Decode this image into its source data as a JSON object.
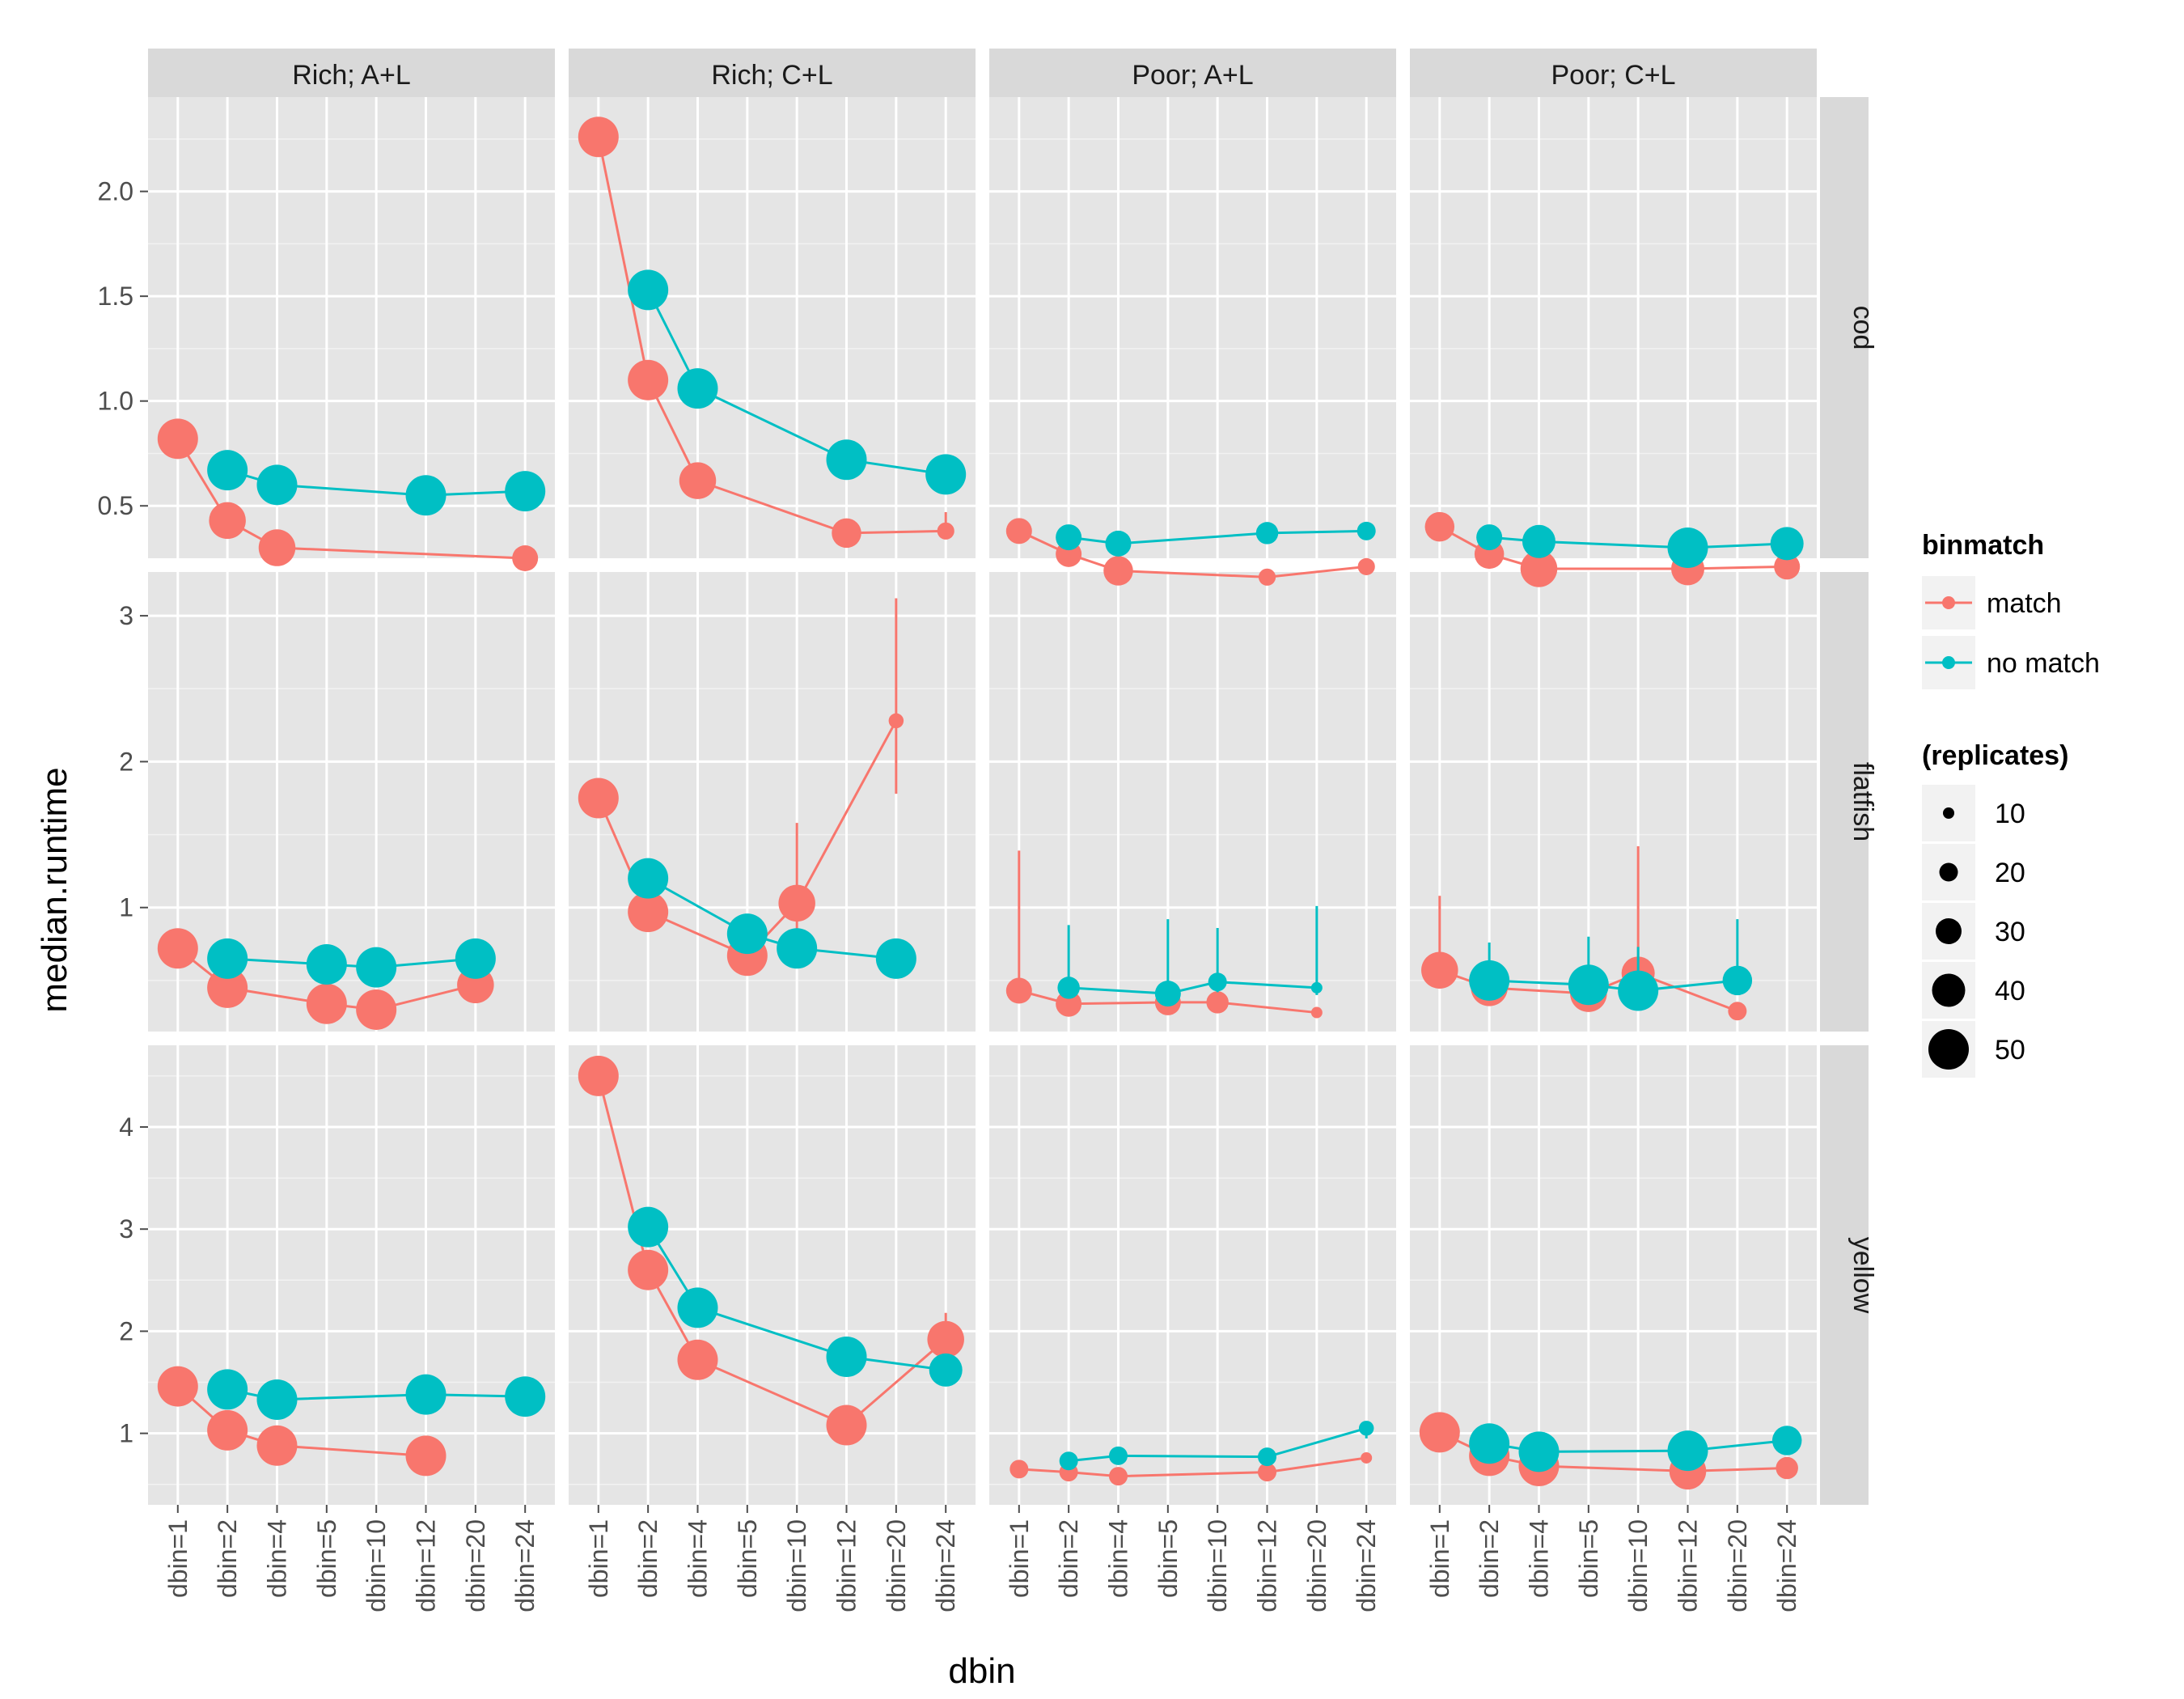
{
  "chart_data": {
    "type": "line",
    "facet_columns": [
      "Rich; A+L",
      "Rich; C+L",
      "Poor; A+L",
      "Poor; C+L"
    ],
    "facet_rows": [
      {
        "label": "cod",
        "ylim": [
          0.25,
          2.45
        ],
        "yticks": [
          0.5,
          1.0,
          1.5,
          2.0
        ],
        "tick_labels": [
          "0.5",
          "1.0",
          "1.5",
          "2.0"
        ]
      },
      {
        "label": "flatfish",
        "ylim": [
          0.15,
          3.3
        ],
        "yticks": [
          1,
          2,
          3
        ],
        "tick_labels": [
          "1",
          "2",
          "3"
        ]
      },
      {
        "label": "yellow",
        "ylim": [
          0.3,
          4.8
        ],
        "yticks": [
          1,
          2,
          3,
          4
        ],
        "tick_labels": [
          "1",
          "2",
          "3",
          "4"
        ]
      }
    ],
    "categories": [
      "dbin=1",
      "dbin=2",
      "dbin=4",
      "dbin=5",
      "dbin=10",
      "dbin=12",
      "dbin=20",
      "dbin=24"
    ],
    "xlabel": "dbin",
    "ylabel": "median.runtime",
    "legend": {
      "color_title": "binmatch",
      "color_items": [
        {
          "label": "match",
          "color": "#F8766D"
        },
        {
          "label": "no match",
          "color": "#00BFC4"
        }
      ],
      "size_title": "(replicates)",
      "size_items": [
        10,
        20,
        30,
        40,
        50
      ],
      "size_labels": [
        "10",
        "20",
        "30",
        "40",
        "50"
      ],
      "placement": "right"
    },
    "colors": {
      "match": "#F8766D",
      "no match": "#00BFC4"
    },
    "panels": [
      {
        "row": 0,
        "col": 0,
        "series": [
          {
            "key": "match",
            "points": [
              {
                "x": "dbin=1",
                "y": 0.82,
                "n": 50
              },
              {
                "x": "dbin=2",
                "y": 0.43,
                "n": 45
              },
              {
                "x": "dbin=4",
                "y": 0.3,
                "n": 45
              },
              {
                "x": "dbin=24",
                "y": 0.25,
                "n": 30
              }
            ]
          },
          {
            "key": "no match",
            "points": [
              {
                "x": "dbin=2",
                "y": 0.67,
                "n": 50
              },
              {
                "x": "dbin=4",
                "y": 0.6,
                "n": 50
              },
              {
                "x": "dbin=12",
                "y": 0.55,
                "n": 50
              },
              {
                "x": "dbin=24",
                "y": 0.57,
                "n": 50
              }
            ]
          }
        ]
      },
      {
        "row": 0,
        "col": 1,
        "series": [
          {
            "key": "match",
            "points": [
              {
                "x": "dbin=1",
                "y": 2.26,
                "n": 50
              },
              {
                "x": "dbin=2",
                "y": 1.1,
                "n": 50
              },
              {
                "x": "dbin=4",
                "y": 0.62,
                "n": 45
              },
              {
                "x": "dbin=12",
                "y": 0.37,
                "n": 35
              },
              {
                "x": "dbin=24",
                "y": 0.38,
                "n": 18,
                "ymin": 0.34,
                "ymax": 0.47
              }
            ]
          },
          {
            "key": "no match",
            "points": [
              {
                "x": "dbin=2",
                "y": 1.53,
                "n": 50
              },
              {
                "x": "dbin=4",
                "y": 1.06,
                "n": 50
              },
              {
                "x": "dbin=12",
                "y": 0.72,
                "n": 50
              },
              {
                "x": "dbin=24",
                "y": 0.65,
                "n": 50
              }
            ]
          }
        ]
      },
      {
        "row": 0,
        "col": 2,
        "series": [
          {
            "key": "match",
            "points": [
              {
                "x": "dbin=1",
                "y": 0.38,
                "n": 30
              },
              {
                "x": "dbin=2",
                "y": 0.27,
                "n": 30
              },
              {
                "x": "dbin=4",
                "y": 0.19,
                "n": 35
              },
              {
                "x": "dbin=12",
                "y": 0.16,
                "n": 18
              },
              {
                "x": "dbin=24",
                "y": 0.21,
                "n": 18
              }
            ]
          },
          {
            "key": "no match",
            "points": [
              {
                "x": "dbin=2",
                "y": 0.35,
                "n": 30
              },
              {
                "x": "dbin=4",
                "y": 0.32,
                "n": 30
              },
              {
                "x": "dbin=12",
                "y": 0.37,
                "n": 25
              },
              {
                "x": "dbin=24",
                "y": 0.38,
                "n": 20
              }
            ]
          }
        ]
      },
      {
        "row": 0,
        "col": 3,
        "series": [
          {
            "key": "match",
            "points": [
              {
                "x": "dbin=1",
                "y": 0.4,
                "n": 35
              },
              {
                "x": "dbin=2",
                "y": 0.27,
                "n": 35
              },
              {
                "x": "dbin=4",
                "y": 0.2,
                "n": 45
              },
              {
                "x": "dbin=12",
                "y": 0.2,
                "n": 40
              },
              {
                "x": "dbin=24",
                "y": 0.21,
                "n": 30
              }
            ]
          },
          {
            "key": "no match",
            "points": [
              {
                "x": "dbin=2",
                "y": 0.35,
                "n": 30
              },
              {
                "x": "dbin=4",
                "y": 0.33,
                "n": 40
              },
              {
                "x": "dbin=12",
                "y": 0.3,
                "n": 50
              },
              {
                "x": "dbin=24",
                "y": 0.32,
                "n": 40
              }
            ]
          }
        ]
      },
      {
        "row": 1,
        "col": 0,
        "series": [
          {
            "key": "match",
            "points": [
              {
                "x": "dbin=1",
                "y": 0.72,
                "n": 50
              },
              {
                "x": "dbin=2",
                "y": 0.45,
                "n": 50
              },
              {
                "x": "dbin=5",
                "y": 0.34,
                "n": 50
              },
              {
                "x": "dbin=10",
                "y": 0.3,
                "n": 50
              },
              {
                "x": "dbin=20",
                "y": 0.47,
                "n": 45
              }
            ]
          },
          {
            "key": "no match",
            "points": [
              {
                "x": "dbin=2",
                "y": 0.65,
                "n": 50
              },
              {
                "x": "dbin=5",
                "y": 0.61,
                "n": 50
              },
              {
                "x": "dbin=10",
                "y": 0.59,
                "n": 50
              },
              {
                "x": "dbin=20",
                "y": 0.65,
                "n": 50
              }
            ]
          }
        ]
      },
      {
        "row": 1,
        "col": 1,
        "series": [
          {
            "key": "match",
            "points": [
              {
                "x": "dbin=1",
                "y": 1.75,
                "n": 50
              },
              {
                "x": "dbin=2",
                "y": 0.97,
                "n": 50
              },
              {
                "x": "dbin=5",
                "y": 0.67,
                "n": 50
              },
              {
                "x": "dbin=10",
                "y": 1.03,
                "n": 45,
                "ymin": 0.72,
                "ymax": 1.58
              },
              {
                "x": "dbin=20",
                "y": 2.28,
                "n": 15,
                "ymin": 1.78,
                "ymax": 3.12
              }
            ]
          },
          {
            "key": "no match",
            "points": [
              {
                "x": "dbin=2",
                "y": 1.2,
                "n": 50
              },
              {
                "x": "dbin=5",
                "y": 0.82,
                "n": 50
              },
              {
                "x": "dbin=10",
                "y": 0.72,
                "n": 50
              },
              {
                "x": "dbin=20",
                "y": 0.65,
                "n": 50
              }
            ]
          }
        ]
      },
      {
        "row": 1,
        "col": 2,
        "series": [
          {
            "key": "match",
            "points": [
              {
                "x": "dbin=1",
                "y": 0.43,
                "n": 30,
                "ymin": 0.4,
                "ymax": 1.39
              },
              {
                "x": "dbin=2",
                "y": 0.34,
                "n": 30
              },
              {
                "x": "dbin=5",
                "y": 0.35,
                "n": 30
              },
              {
                "x": "dbin=10",
                "y": 0.35,
                "n": 25
              },
              {
                "x": "dbin=20",
                "y": 0.28,
                "n": 10
              }
            ]
          },
          {
            "key": "no match",
            "points": [
              {
                "x": "dbin=2",
                "y": 0.45,
                "n": 25,
                "ymin": 0.4,
                "ymax": 0.88
              },
              {
                "x": "dbin=5",
                "y": 0.41,
                "n": 30,
                "ymin": 0.38,
                "ymax": 0.92
              },
              {
                "x": "dbin=10",
                "y": 0.49,
                "n": 20,
                "ymin": 0.42,
                "ymax": 0.86
              },
              {
                "x": "dbin=20",
                "y": 0.45,
                "n": 10,
                "ymin": 0.4,
                "ymax": 1.01
              }
            ]
          }
        ]
      },
      {
        "row": 1,
        "col": 3,
        "series": [
          {
            "key": "match",
            "points": [
              {
                "x": "dbin=1",
                "y": 0.57,
                "n": 45,
                "ymin": 0.5,
                "ymax": 1.08
              },
              {
                "x": "dbin=2",
                "y": 0.45,
                "n": 45
              },
              {
                "x": "dbin=5",
                "y": 0.41,
                "n": 45
              },
              {
                "x": "dbin=10",
                "y": 0.55,
                "n": 40,
                "ymin": 0.48,
                "ymax": 1.42
              },
              {
                "x": "dbin=20",
                "y": 0.29,
                "n": 20
              }
            ]
          },
          {
            "key": "no match",
            "points": [
              {
                "x": "dbin=2",
                "y": 0.5,
                "n": 50,
                "ymin": 0.4,
                "ymax": 0.76
              },
              {
                "x": "dbin=5",
                "y": 0.47,
                "n": 50,
                "ymin": 0.42,
                "ymax": 0.8
              },
              {
                "x": "dbin=10",
                "y": 0.43,
                "n": 50,
                "ymin": 0.4,
                "ymax": 0.73
              },
              {
                "x": "dbin=20",
                "y": 0.5,
                "n": 35,
                "ymin": 0.45,
                "ymax": 0.92
              }
            ]
          }
        ]
      },
      {
        "row": 2,
        "col": 0,
        "series": [
          {
            "key": "match",
            "points": [
              {
                "x": "dbin=1",
                "y": 1.46,
                "n": 50
              },
              {
                "x": "dbin=2",
                "y": 1.03,
                "n": 50
              },
              {
                "x": "dbin=4",
                "y": 0.88,
                "n": 50
              },
              {
                "x": "dbin=12",
                "y": 0.78,
                "n": 50
              }
            ]
          },
          {
            "key": "no match",
            "points": [
              {
                "x": "dbin=2",
                "y": 1.43,
                "n": 50
              },
              {
                "x": "dbin=4",
                "y": 1.33,
                "n": 50
              },
              {
                "x": "dbin=12",
                "y": 1.38,
                "n": 50
              },
              {
                "x": "dbin=24",
                "y": 1.36,
                "n": 50
              }
            ]
          }
        ]
      },
      {
        "row": 2,
        "col": 1,
        "series": [
          {
            "key": "match",
            "points": [
              {
                "x": "dbin=1",
                "y": 4.5,
                "n": 50
              },
              {
                "x": "dbin=2",
                "y": 2.6,
                "n": 50
              },
              {
                "x": "dbin=4",
                "y": 1.72,
                "n": 50
              },
              {
                "x": "dbin=12",
                "y": 1.08,
                "n": 50
              },
              {
                "x": "dbin=24",
                "y": 1.92,
                "n": 45,
                "ymin": 1.62,
                "ymax": 2.18
              }
            ]
          },
          {
            "key": "no match",
            "points": [
              {
                "x": "dbin=2",
                "y": 3.02,
                "n": 50
              },
              {
                "x": "dbin=4",
                "y": 2.23,
                "n": 50
              },
              {
                "x": "dbin=12",
                "y": 1.75,
                "n": 50
              },
              {
                "x": "dbin=24",
                "y": 1.62,
                "n": 40
              }
            ]
          }
        ]
      },
      {
        "row": 2,
        "col": 2,
        "series": [
          {
            "key": "match",
            "points": [
              {
                "x": "dbin=1",
                "y": 0.65,
                "n": 20,
                "ymin": 0.62,
                "ymax": 0.74
              },
              {
                "x": "dbin=2",
                "y": 0.62,
                "n": 20
              },
              {
                "x": "dbin=4",
                "y": 0.58,
                "n": 20
              },
              {
                "x": "dbin=12",
                "y": 0.62,
                "n": 20
              },
              {
                "x": "dbin=24",
                "y": 0.76,
                "n": 10
              }
            ]
          },
          {
            "key": "no match",
            "points": [
              {
                "x": "dbin=2",
                "y": 0.73,
                "n": 20
              },
              {
                "x": "dbin=4",
                "y": 0.78,
                "n": 20
              },
              {
                "x": "dbin=12",
                "y": 0.77,
                "n": 20
              },
              {
                "x": "dbin=24",
                "y": 1.05,
                "n": 15,
                "ymin": 0.95,
                "ymax": 1.12
              }
            ]
          }
        ]
      },
      {
        "row": 2,
        "col": 3,
        "series": [
          {
            "key": "match",
            "points": [
              {
                "x": "dbin=1",
                "y": 1.01,
                "n": 50
              },
              {
                "x": "dbin=2",
                "y": 0.78,
                "n": 50
              },
              {
                "x": "dbin=4",
                "y": 0.68,
                "n": 50
              },
              {
                "x": "dbin=12",
                "y": 0.63,
                "n": 45
              },
              {
                "x": "dbin=24",
                "y": 0.66,
                "n": 25,
                "ymin": 0.6,
                "ymax": 0.74
              }
            ]
          },
          {
            "key": "no match",
            "points": [
              {
                "x": "dbin=2",
                "y": 0.9,
                "n": 50
              },
              {
                "x": "dbin=4",
                "y": 0.82,
                "n": 50
              },
              {
                "x": "dbin=12",
                "y": 0.83,
                "n": 50
              },
              {
                "x": "dbin=24",
                "y": 0.93,
                "n": 35
              }
            ]
          }
        ]
      }
    ]
  }
}
